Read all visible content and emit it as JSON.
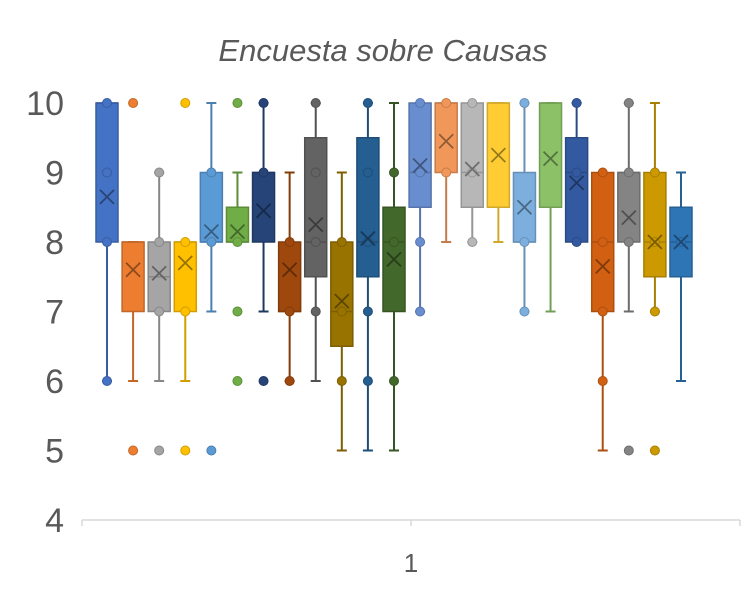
{
  "chart_data": {
    "type": "box",
    "title": "Encuesta sobre Causas",
    "xlabel": "",
    "ylabel": "",
    "categories": [
      "1"
    ],
    "ylim": [
      4,
      10
    ],
    "yticks": [
      "4",
      "5",
      "6",
      "7",
      "8",
      "9",
      "10"
    ],
    "grid": false,
    "legend": "none",
    "series": [
      {
        "color": "#4472C4",
        "q1": 8,
        "median": 10,
        "q3": 10,
        "mean": 8.65,
        "whisker_low": 6,
        "whisker_high": 10,
        "points": [
          10,
          9,
          8,
          6
        ]
      },
      {
        "color": "#ED7D31",
        "q1": 7,
        "median": 8,
        "q3": 8,
        "mean": 7.6,
        "whisker_low": 6,
        "whisker_high": 8,
        "points": [
          10,
          5
        ]
      },
      {
        "color": "#A5A5A5",
        "q1": 7,
        "median": 7.5,
        "q3": 8,
        "mean": 7.55,
        "whisker_low": 6,
        "whisker_high": 9,
        "points": [
          9,
          8,
          7,
          5
        ]
      },
      {
        "color": "#FFC000",
        "q1": 7,
        "median": 8,
        "q3": 8,
        "mean": 7.7,
        "whisker_low": 6,
        "whisker_high": 8,
        "points": [
          10,
          8,
          7,
          5
        ]
      },
      {
        "color": "#5B9BD5",
        "q1": 8,
        "median": 8,
        "q3": 9,
        "mean": 8.15,
        "whisker_low": 7,
        "whisker_high": 10,
        "points": [
          9,
          8,
          5
        ]
      },
      {
        "color": "#70AD47",
        "q1": 8,
        "median": 8,
        "q3": 8.5,
        "mean": 8.15,
        "whisker_low": 8,
        "whisker_high": 9,
        "points": [
          10,
          8,
          7,
          6
        ]
      },
      {
        "color": "#264478",
        "q1": 8,
        "median": 9,
        "q3": 9,
        "mean": 8.45,
        "whisker_low": 7,
        "whisker_high": 10,
        "points": [
          10,
          9,
          6
        ]
      },
      {
        "color": "#9E480E",
        "q1": 7,
        "median": 7,
        "q3": 8,
        "mean": 7.6,
        "whisker_low": 6,
        "whisker_high": 9,
        "points": [
          8,
          7,
          6
        ]
      },
      {
        "color": "#636363",
        "q1": 7.5,
        "median": 8,
        "q3": 9.5,
        "mean": 8.25,
        "whisker_low": 6,
        "whisker_high": 10,
        "points": [
          10,
          9,
          8,
          7
        ]
      },
      {
        "color": "#997300",
        "q1": 6.5,
        "median": 7,
        "q3": 8,
        "mean": 7.15,
        "whisker_low": 5,
        "whisker_high": 9,
        "points": [
          8,
          7,
          6
        ]
      },
      {
        "color": "#255E91",
        "q1": 7.5,
        "median": 8,
        "q3": 9.5,
        "mean": 8.05,
        "whisker_low": 5,
        "whisker_high": 10,
        "points": [
          10,
          9,
          8,
          7,
          6
        ]
      },
      {
        "color": "#43682B",
        "q1": 7,
        "median": 8,
        "q3": 8.5,
        "mean": 7.75,
        "whisker_low": 5,
        "whisker_high": 10,
        "points": [
          9,
          8,
          6
        ]
      },
      {
        "color": "#698ED0",
        "q1": 8.5,
        "median": 9,
        "q3": 10,
        "mean": 9.1,
        "whisker_low": 7,
        "whisker_high": 10,
        "points": [
          10,
          9,
          8,
          7
        ]
      },
      {
        "color": "#F1975A",
        "q1": 9,
        "median": 10,
        "q3": 10,
        "mean": 9.45,
        "whisker_low": 8,
        "whisker_high": 10,
        "points": [
          10,
          9
        ]
      },
      {
        "color": "#B7B7B7",
        "q1": 8.5,
        "median": 9,
        "q3": 10,
        "mean": 9.05,
        "whisker_low": 8,
        "whisker_high": 10,
        "points": [
          10,
          9,
          8
        ]
      },
      {
        "color": "#FFCD33",
        "q1": 8.5,
        "median": 10,
        "q3": 10,
        "mean": 9.25,
        "whisker_low": 8,
        "whisker_high": 10,
        "points": []
      },
      {
        "color": "#7CAFDD",
        "q1": 8,
        "median": 8,
        "q3": 9,
        "mean": 8.5,
        "whisker_low": 7,
        "whisker_high": 10,
        "points": [
          10,
          8,
          7
        ]
      },
      {
        "color": "#8CC168",
        "q1": 8.5,
        "median": 10,
        "q3": 10,
        "mean": 9.2,
        "whisker_low": 7,
        "whisker_high": 10,
        "points": []
      },
      {
        "color": "#335AA1",
        "q1": 8,
        "median": 9,
        "q3": 9.5,
        "mean": 8.85,
        "whisker_low": 8,
        "whisker_high": 10,
        "points": [
          10,
          9,
          8
        ]
      },
      {
        "color": "#D26012",
        "q1": 7,
        "median": 8,
        "q3": 9,
        "mean": 7.65,
        "whisker_low": 5,
        "whisker_high": 9,
        "points": [
          9,
          8,
          7,
          6
        ]
      },
      {
        "color": "#848484",
        "q1": 8,
        "median": 9,
        "q3": 9,
        "mean": 8.35,
        "whisker_low": 7,
        "whisker_high": 10,
        "points": [
          10,
          9,
          8,
          5
        ]
      },
      {
        "color": "#CC9A00",
        "q1": 7.5,
        "median": 8,
        "q3": 9,
        "mean": 8.0,
        "whisker_low": 7,
        "whisker_high": 10,
        "points": [
          9,
          8,
          7,
          5
        ]
      },
      {
        "color": "#2E75B6",
        "q1": 7.5,
        "median": 8,
        "q3": 8.5,
        "mean": 8.0,
        "whisker_low": 6,
        "whisker_high": 9,
        "points": [
          8
        ]
      }
    ]
  }
}
